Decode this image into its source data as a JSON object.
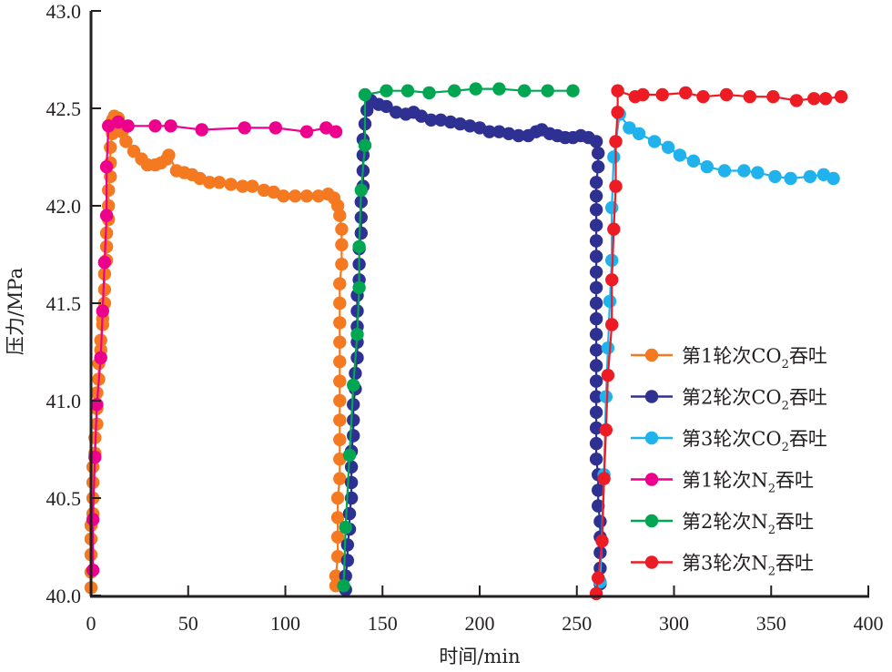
{
  "chart_data": {
    "type": "line",
    "title": "",
    "xlabel": "时间/min",
    "ylabel": "压力/MPa",
    "xlim": [
      0,
      400
    ],
    "ylim": [
      40.0,
      43.0
    ],
    "xticks": [
      "0",
      "50",
      "100",
      "150",
      "200",
      "250",
      "300",
      "350",
      "400"
    ],
    "yticks": [
      "40.0",
      "40.5",
      "41.0",
      "41.5",
      "42.0",
      "42.5",
      "43.0"
    ],
    "grid": false,
    "legend_position": "bottom-right",
    "series": [
      {
        "name": "第1轮次CO2吞吐",
        "label_main": "第1轮次CO",
        "label_sub": "2",
        "label_tail": "吞吐",
        "color": "#f47920",
        "points": [
          [
            0,
            40.04
          ],
          [
            0,
            40.12
          ],
          [
            0,
            40.21
          ],
          [
            0,
            40.29
          ],
          [
            0,
            40.36
          ],
          [
            1,
            40.42
          ],
          [
            1,
            40.5
          ],
          [
            1,
            40.58
          ],
          [
            1,
            40.66
          ],
          [
            2,
            40.73
          ],
          [
            2,
            40.81
          ],
          [
            3,
            40.88
          ],
          [
            3,
            40.96
          ],
          [
            3,
            41.04
          ],
          [
            4,
            41.11
          ],
          [
            4,
            41.19
          ],
          [
            5,
            41.26
          ],
          [
            5,
            41.31
          ],
          [
            6,
            41.39
          ],
          [
            6,
            41.42
          ],
          [
            7,
            41.5
          ],
          [
            7,
            41.57
          ],
          [
            7,
            41.65
          ],
          [
            8,
            41.72
          ],
          [
            8,
            41.79
          ],
          [
            8,
            41.86
          ],
          [
            9,
            41.93
          ],
          [
            9,
            42.0
          ],
          [
            9,
            42.08
          ],
          [
            10,
            42.15
          ],
          [
            10,
            42.22
          ],
          [
            10,
            42.3
          ],
          [
            11,
            42.37
          ],
          [
            11,
            42.44
          ],
          [
            12,
            42.46
          ],
          [
            14,
            42.45
          ],
          [
            16,
            42.38
          ],
          [
            18,
            42.33
          ],
          [
            22,
            42.28
          ],
          [
            26,
            42.24
          ],
          [
            29,
            42.21
          ],
          [
            33,
            42.21
          ],
          [
            36,
            42.22
          ],
          [
            39,
            42.24
          ],
          [
            40,
            42.26
          ],
          [
            44,
            42.18
          ],
          [
            48,
            42.17
          ],
          [
            52,
            42.16
          ],
          [
            56,
            42.14
          ],
          [
            61,
            42.12
          ],
          [
            66,
            42.12
          ],
          [
            72,
            42.11
          ],
          [
            78,
            42.1
          ],
          [
            83,
            42.1
          ],
          [
            89,
            42.08
          ],
          [
            94,
            42.07
          ],
          [
            99,
            42.05
          ],
          [
            105,
            42.05
          ],
          [
            111,
            42.05
          ],
          [
            117,
            42.05
          ],
          [
            122,
            42.06
          ],
          [
            125,
            42.04
          ],
          [
            127,
            42.0
          ],
          [
            128,
            41.95
          ],
          [
            129,
            41.88
          ],
          [
            129,
            41.8
          ],
          [
            129,
            41.7
          ],
          [
            128,
            41.6
          ],
          [
            128,
            41.5
          ],
          [
            128,
            41.4
          ],
          [
            128,
            41.3
          ],
          [
            128,
            41.2
          ],
          [
            128,
            41.1
          ],
          [
            128,
            41.0
          ],
          [
            128,
            40.9
          ],
          [
            128,
            40.8
          ],
          [
            128,
            40.7
          ],
          [
            128,
            40.6
          ],
          [
            127,
            40.5
          ],
          [
            127,
            40.4
          ],
          [
            127,
            40.3
          ],
          [
            127,
            40.2
          ],
          [
            126,
            40.1
          ],
          [
            126,
            40.05
          ]
        ]
      },
      {
        "name": "第2轮次CO2吞吐",
        "label_main": "第2轮次CO",
        "label_sub": "2",
        "label_tail": "吞吐",
        "color": "#2e3192",
        "points": [
          [
            131,
            40.03
          ],
          [
            131,
            40.1
          ],
          [
            132,
            40.18
          ],
          [
            132,
            40.26
          ],
          [
            133,
            40.34
          ],
          [
            133,
            40.42
          ],
          [
            134,
            40.5
          ],
          [
            134,
            40.58
          ],
          [
            134,
            40.66
          ],
          [
            134,
            40.74
          ],
          [
            135,
            40.82
          ],
          [
            135,
            40.9
          ],
          [
            135,
            40.98
          ],
          [
            136,
            41.06
          ],
          [
            136,
            41.14
          ],
          [
            137,
            41.22
          ],
          [
            137,
            41.3
          ],
          [
            137,
            41.38
          ],
          [
            137,
            41.46
          ],
          [
            137,
            41.54
          ],
          [
            138,
            41.62
          ],
          [
            138,
            41.7
          ],
          [
            138,
            41.78
          ],
          [
            139,
            41.86
          ],
          [
            139,
            41.94
          ],
          [
            139,
            42.02
          ],
          [
            140,
            42.1
          ],
          [
            140,
            42.18
          ],
          [
            140,
            42.26
          ],
          [
            140,
            42.34
          ],
          [
            141,
            42.42
          ],
          [
            142,
            42.49
          ],
          [
            144,
            42.54
          ],
          [
            148,
            42.52
          ],
          [
            152,
            42.51
          ],
          [
            157,
            42.48
          ],
          [
            162,
            42.47
          ],
          [
            166,
            42.48
          ],
          [
            170,
            42.46
          ],
          [
            175,
            42.44
          ],
          [
            180,
            42.44
          ],
          [
            185,
            42.43
          ],
          [
            190,
            42.42
          ],
          [
            195,
            42.41
          ],
          [
            200,
            42.4
          ],
          [
            205,
            42.38
          ],
          [
            210,
            42.38
          ],
          [
            215,
            42.37
          ],
          [
            220,
            42.36
          ],
          [
            225,
            42.36
          ],
          [
            229,
            42.38
          ],
          [
            232,
            42.39
          ],
          [
            236,
            42.37
          ],
          [
            240,
            42.36
          ],
          [
            244,
            42.35
          ],
          [
            248,
            42.35
          ],
          [
            252,
            42.36
          ],
          [
            256,
            42.35
          ],
          [
            260,
            42.33
          ],
          [
            261,
            42.27
          ],
          [
            261,
            42.2
          ],
          [
            260,
            42.12
          ],
          [
            260,
            42.05
          ],
          [
            260,
            41.98
          ],
          [
            260,
            41.9
          ],
          [
            260,
            41.82
          ],
          [
            260,
            41.74
          ],
          [
            260,
            41.66
          ],
          [
            260,
            41.58
          ],
          [
            260,
            41.5
          ],
          [
            260,
            41.42
          ],
          [
            260,
            41.34
          ],
          [
            260,
            41.26
          ],
          [
            260,
            41.18
          ],
          [
            260,
            41.1
          ],
          [
            260,
            41.02
          ],
          [
            260,
            40.94
          ],
          [
            260,
            40.86
          ],
          [
            260,
            40.78
          ],
          [
            260,
            40.7
          ],
          [
            261,
            40.62
          ],
          [
            261,
            40.54
          ],
          [
            261,
            40.46
          ],
          [
            262,
            40.38
          ],
          [
            262,
            40.3
          ],
          [
            262,
            40.22
          ],
          [
            262,
            40.14
          ],
          [
            262,
            40.06
          ]
        ]
      },
      {
        "name": "第3轮次CO2吞吐",
        "label_main": "第3轮次CO",
        "label_sub": "2",
        "label_tail": "吞吐",
        "color": "#1fb2ed",
        "points": [
          [
            262,
            40.07
          ],
          [
            264,
            40.62
          ],
          [
            265,
            41.02
          ],
          [
            266,
            41.27
          ],
          [
            267,
            41.51
          ],
          [
            268,
            41.72
          ],
          [
            268,
            41.99
          ],
          [
            269,
            42.25
          ],
          [
            272,
            42.47
          ],
          [
            277,
            42.4
          ],
          [
            282,
            42.37
          ],
          [
            290,
            42.33
          ],
          [
            297,
            42.3
          ],
          [
            303,
            42.26
          ],
          [
            310,
            42.23
          ],
          [
            317,
            42.2
          ],
          [
            326,
            42.18
          ],
          [
            336,
            42.18
          ],
          [
            343,
            42.17
          ],
          [
            352,
            42.15
          ],
          [
            360,
            42.14
          ],
          [
            370,
            42.15
          ],
          [
            377,
            42.16
          ],
          [
            382,
            42.14
          ]
        ]
      },
      {
        "name": "第1轮次N2吞吐",
        "label_main": "第1轮次N",
        "label_sub": "2",
        "label_tail": "吞吐",
        "color": "#ec008c",
        "points": [
          [
            1,
            40.13
          ],
          [
            1,
            40.39
          ],
          [
            2,
            40.71
          ],
          [
            3,
            40.98
          ],
          [
            5,
            41.22
          ],
          [
            6,
            41.46
          ],
          [
            7,
            41.71
          ],
          [
            8,
            41.95
          ],
          [
            8,
            42.2
          ],
          [
            9,
            42.41
          ],
          [
            14,
            42.43
          ],
          [
            19,
            42.41
          ],
          [
            33,
            42.41
          ],
          [
            41,
            42.41
          ],
          [
            57,
            42.39
          ],
          [
            79,
            42.4
          ],
          [
            95,
            42.4
          ],
          [
            111,
            42.38
          ],
          [
            121,
            42.4
          ],
          [
            126,
            42.38
          ]
        ]
      },
      {
        "name": "第2轮次N2吞吐",
        "label_main": "第2轮次N",
        "label_sub": "2",
        "label_tail": "吞吐",
        "color": "#00a651",
        "points": [
          [
            130,
            40.05
          ],
          [
            131,
            40.35
          ],
          [
            133,
            40.72
          ],
          [
            135,
            41.08
          ],
          [
            137,
            41.34
          ],
          [
            138,
            41.58
          ],
          [
            138,
            41.79
          ],
          [
            139,
            42.08
          ],
          [
            141,
            42.31
          ],
          [
            141,
            42.57
          ],
          [
            152,
            42.59
          ],
          [
            163,
            42.59
          ],
          [
            174,
            42.58
          ],
          [
            187,
            42.59
          ],
          [
            198,
            42.6
          ],
          [
            210,
            42.6
          ],
          [
            223,
            42.59
          ],
          [
            235,
            42.59
          ],
          [
            248,
            42.59
          ]
        ]
      },
      {
        "name": "第3轮次N2吞吐",
        "label_main": "第3轮次N",
        "label_sub": "2",
        "label_tail": "吞吐",
        "color": "#ed1c24",
        "points": [
          [
            260,
            40.01
          ],
          [
            261,
            40.09
          ],
          [
            263,
            40.28
          ],
          [
            264,
            40.6
          ],
          [
            265,
            40.85
          ],
          [
            266,
            41.13
          ],
          [
            268,
            41.39
          ],
          [
            268,
            41.62
          ],
          [
            269,
            41.88
          ],
          [
            270,
            42.1
          ],
          [
            270,
            42.33
          ],
          [
            271,
            42.48
          ],
          [
            271,
            42.59
          ],
          [
            280,
            42.56
          ],
          [
            284,
            42.57
          ],
          [
            294,
            42.57
          ],
          [
            306,
            42.58
          ],
          [
            315,
            42.56
          ],
          [
            327,
            42.57
          ],
          [
            339,
            42.56
          ],
          [
            351,
            42.56
          ],
          [
            363,
            42.54
          ],
          [
            372,
            42.55
          ],
          [
            378,
            42.55
          ],
          [
            386,
            42.56
          ]
        ]
      }
    ]
  }
}
